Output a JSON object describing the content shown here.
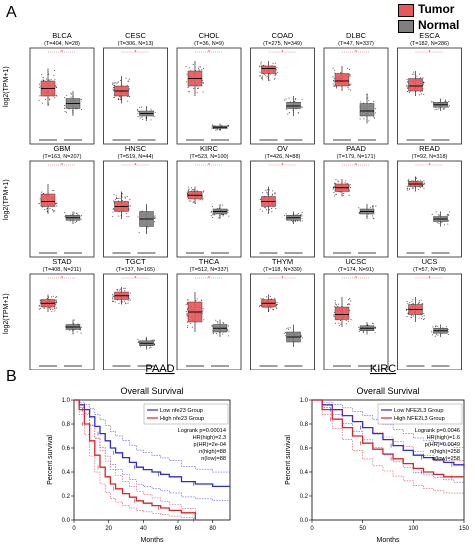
{
  "figure": {
    "panel_a_label": "A",
    "panel_b_label": "B",
    "legend": {
      "items": [
        {
          "label": "Tumor",
          "color": "#e8585b"
        },
        {
          "label": "Normal",
          "color": "#7f7f7f"
        }
      ]
    },
    "boxplot_ylabel": "log2(TPM+1)"
  },
  "colors": {
    "tumor": "#e8585b",
    "normal": "#7f7f7f",
    "low_group": "#2b2bd8",
    "high_group": "#e0202a"
  },
  "chart_data": [
    {
      "type": "boxplot",
      "panel": "A",
      "ylabel": "log2(TPM+1)",
      "groups": [
        {
          "name": "BLCA",
          "sub": "(T=404, N=28)",
          "tumor": [
            1.2,
            1.6,
            1.9,
            2.2,
            2.7
          ],
          "normal": [
            0.8,
            1.1,
            1.3,
            1.5,
            1.8
          ],
          "sig": true
        },
        {
          "name": "CESC",
          "sub": "(T=306, N=13)",
          "tumor": [
            1.3,
            1.6,
            1.8,
            2.0,
            2.4
          ],
          "normal": [
            0.6,
            0.8,
            0.9,
            1.0,
            1.2
          ],
          "sig": true
        },
        {
          "name": "CHOL",
          "sub": "(T=36, N=9)",
          "tumor": [
            1.6,
            2.0,
            2.3,
            2.6,
            3.0
          ],
          "normal": [
            0.2,
            0.3,
            0.35,
            0.4,
            0.5
          ],
          "sig": true
        },
        {
          "name": "COAD",
          "sub": "(T=275, N=349)",
          "tumor": [
            2.2,
            2.5,
            2.7,
            2.8,
            3.0
          ],
          "normal": [
            0.8,
            1.1,
            1.2,
            1.35,
            1.6
          ],
          "sig": true
        },
        {
          "name": "DLBC",
          "sub": "(T=47, N=337)",
          "tumor": [
            1.8,
            2.0,
            2.2,
            2.5,
            2.8
          ],
          "normal": [
            0.5,
            0.8,
            1.0,
            1.3,
            1.7
          ],
          "sig": true
        },
        {
          "name": "ESCA",
          "sub": "(T=182, N=286)",
          "tumor": [
            1.6,
            1.8,
            2.0,
            2.3,
            2.6
          ],
          "normal": [
            1.0,
            1.15,
            1.25,
            1.35,
            1.5
          ],
          "sig": true
        },
        {
          "name": "GBM",
          "sub": "(T=163, N=207)",
          "tumor": [
            1.4,
            1.7,
            1.9,
            2.2,
            2.6
          ],
          "normal": [
            1.0,
            1.15,
            1.25,
            1.35,
            1.5
          ],
          "sig": true
        },
        {
          "name": "HNSC",
          "sub": "(T=519, N=44)",
          "tumor": [
            1.2,
            1.5,
            1.7,
            1.9,
            2.3
          ],
          "normal": [
            0.6,
            0.9,
            1.2,
            1.5,
            1.8
          ],
          "sig": true
        },
        {
          "name": "KIRC",
          "sub": "(T=523, N=100)",
          "tumor": [
            1.8,
            2.0,
            2.15,
            2.3,
            2.5
          ],
          "normal": [
            1.2,
            1.4,
            1.5,
            1.6,
            1.8
          ],
          "sig": true
        },
        {
          "name": "OV",
          "sub": "(T=426, N=88)",
          "tumor": [
            1.4,
            1.7,
            1.9,
            2.1,
            2.5
          ],
          "normal": [
            1.0,
            1.15,
            1.25,
            1.35,
            1.5
          ],
          "sig": true
        },
        {
          "name": "PAAD",
          "sub": "(T=179, N=171)",
          "tumor": [
            2.1,
            2.3,
            2.45,
            2.6,
            2.8
          ],
          "normal": [
            1.2,
            1.4,
            1.5,
            1.6,
            1.8
          ],
          "sig": true
        },
        {
          "name": "READ",
          "sub": "(T=92, N=318)",
          "tumor": [
            2.3,
            2.5,
            2.6,
            2.7,
            2.9
          ],
          "normal": [
            0.9,
            1.1,
            1.2,
            1.3,
            1.5
          ],
          "sig": true
        },
        {
          "name": "STAD",
          "sub": "(T=408, N=211)",
          "tumor": [
            2.0,
            2.2,
            2.35,
            2.5,
            2.7
          ],
          "normal": [
            1.1,
            1.3,
            1.4,
            1.5,
            1.7
          ],
          "sig": true
        },
        {
          "name": "TGCT",
          "sub": "(T=137, N=165)",
          "tumor": [
            2.3,
            2.5,
            2.65,
            2.8,
            3.0
          ],
          "normal": [
            0.5,
            0.65,
            0.75,
            0.85,
            1.0
          ],
          "sig": true
        },
        {
          "name": "THCA",
          "sub": "(T=512, N=337)",
          "tumor": [
            1.2,
            1.6,
            2.0,
            2.4,
            2.8
          ],
          "normal": [
            1.0,
            1.2,
            1.35,
            1.5,
            1.7
          ],
          "sig": true
        },
        {
          "name": "THYM",
          "sub": "(T=118, N=339)",
          "tumor": [
            2.0,
            2.2,
            2.35,
            2.5,
            2.7
          ],
          "normal": [
            0.6,
            0.8,
            1.0,
            1.2,
            1.5
          ],
          "sig": true
        },
        {
          "name": "UCSC",
          "sub": "(T=174, N=91)",
          "tumor": [
            1.4,
            1.7,
            1.9,
            2.2,
            2.6
          ],
          "normal": [
            1.1,
            1.25,
            1.35,
            1.45,
            1.6
          ],
          "sig": true
        },
        {
          "name": "UCS",
          "sub": "(T=57, N=78)",
          "tumor": [
            1.6,
            1.9,
            2.1,
            2.3,
            2.6
          ],
          "normal": [
            1.0,
            1.15,
            1.25,
            1.35,
            1.5
          ],
          "sig": true
        }
      ]
    },
    {
      "type": "line",
      "panel": "B",
      "heading": "PAAD",
      "title": "Overall Survival",
      "xlabel": "Months",
      "ylabel": "Percent survival",
      "xlim": [
        0,
        90
      ],
      "ylim": [
        0,
        1
      ],
      "xticks": [
        0,
        20,
        40,
        60,
        80
      ],
      "yticks": [
        0.0,
        0.2,
        0.4,
        0.6,
        0.8,
        1.0
      ],
      "legend": [
        "Low nfe23 Group",
        "High nfe23 Group"
      ],
      "stats": [
        "Logrank p=0.00014",
        "HR(high)=2.3",
        "p(HR)=2e-04",
        "n(high)=88",
        "n(low)=88"
      ],
      "series": [
        {
          "name": "Low nfe23 Group",
          "color": "#2b2bd8",
          "x": [
            0,
            3,
            6,
            9,
            12,
            15,
            18,
            21,
            24,
            28,
            32,
            36,
            40,
            45,
            50,
            55,
            62,
            70,
            80,
            90
          ],
          "y": [
            1.0,
            0.96,
            0.92,
            0.86,
            0.78,
            0.72,
            0.66,
            0.6,
            0.56,
            0.52,
            0.48,
            0.44,
            0.42,
            0.4,
            0.38,
            0.36,
            0.32,
            0.3,
            0.28,
            0.28
          ]
        },
        {
          "name": "High nfe23 Group",
          "color": "#e0202a",
          "x": [
            0,
            3,
            6,
            9,
            12,
            15,
            18,
            21,
            24,
            28,
            32,
            36,
            40,
            45,
            50,
            55,
            62,
            70
          ],
          "y": [
            1.0,
            0.92,
            0.8,
            0.66,
            0.54,
            0.44,
            0.36,
            0.3,
            0.26,
            0.22,
            0.19,
            0.16,
            0.14,
            0.12,
            0.1,
            0.08,
            0.06,
            0.0
          ]
        }
      ]
    },
    {
      "type": "line",
      "panel": "B",
      "heading": "KIRC",
      "title": "Overall Survival",
      "xlabel": "Months",
      "ylabel": "Percent survival",
      "xlim": [
        0,
        150
      ],
      "ylim": [
        0,
        1
      ],
      "xticks": [
        0,
        50,
        100,
        150
      ],
      "yticks": [
        0.0,
        0.2,
        0.4,
        0.6,
        0.8,
        1.0
      ],
      "legend": [
        "Low NFE2L3 Group",
        "High NFE2L3 Group"
      ],
      "stats": [
        "Logrank p=0.0046",
        "HR(high)=1.6",
        "p(HR)=0.0049",
        "n(high)=258",
        "n(low)=258"
      ],
      "series": [
        {
          "name": "Low NFE2L3 Group",
          "color": "#2b2bd8",
          "x": [
            0,
            10,
            20,
            30,
            40,
            50,
            60,
            70,
            80,
            90,
            100,
            110,
            120,
            130,
            140,
            150
          ],
          "y": [
            1.0,
            0.96,
            0.92,
            0.87,
            0.82,
            0.77,
            0.72,
            0.67,
            0.62,
            0.58,
            0.54,
            0.52,
            0.5,
            0.48,
            0.46,
            0.44
          ]
        },
        {
          "name": "High NFE2L3 Group",
          "color": "#e0202a",
          "x": [
            0,
            10,
            20,
            30,
            40,
            50,
            60,
            70,
            80,
            90,
            100,
            110,
            120,
            130,
            140,
            150
          ],
          "y": [
            1.0,
            0.92,
            0.84,
            0.77,
            0.7,
            0.64,
            0.59,
            0.55,
            0.51,
            0.47,
            0.43,
            0.4,
            0.38,
            0.36,
            0.36,
            0.36
          ]
        }
      ]
    }
  ]
}
